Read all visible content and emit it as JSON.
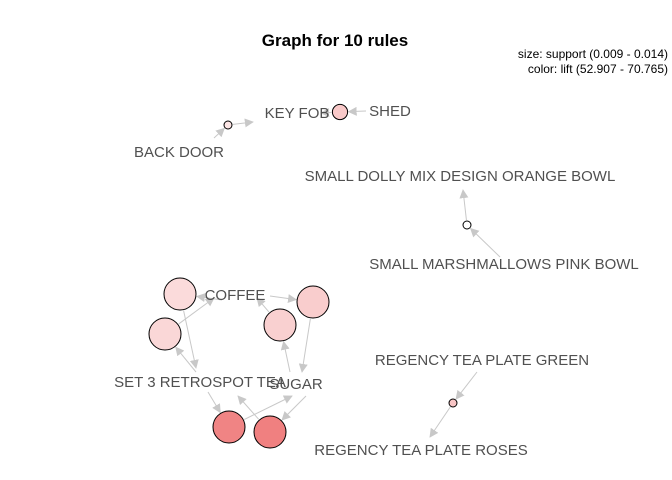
{
  "title": "Graph for 10 rules",
  "legend": {
    "size_text": "size: support (0.009 - 0.014)",
    "color_text": "color: lift (52.907 - 70.765)"
  },
  "chart_data": {
    "type": "network",
    "title": "Graph for 10 rules",
    "size_measure": "support",
    "size_range": [
      0.009,
      0.014
    ],
    "color_measure": "lift",
    "color_range": [
      52.907,
      70.765
    ],
    "color_low": "#ffffff",
    "color_high": "#f08080",
    "edge_color": "#c8c8c8",
    "items": [
      "KEY FOB",
      "SHED",
      "BACK DOOR",
      "SMALL DOLLY MIX DESIGN ORANGE BOWL",
      "SMALL MARSHMALLOWS PINK BOWL",
      "COFFEE",
      "SET 3 RETROSPOT TEA",
      "SUGAR",
      "REGENCY TEA PLATE GREEN",
      "REGENCY TEA PLATE ROSES"
    ],
    "rules": [
      {
        "lhs": [
          "SHED"
        ],
        "rhs": "KEY FOB",
        "support": 0.0105,
        "lift": 60.5
      },
      {
        "lhs": [
          "BACK DOOR"
        ],
        "rhs": "KEY FOB",
        "support": 0.009,
        "lift": 56.5
      },
      {
        "lhs": [
          "SMALL MARSHMALLOWS PINK BOWL"
        ],
        "rhs": "SMALL DOLLY MIX DESIGN ORANGE BOWL",
        "support": 0.009,
        "lift": 52.907
      },
      {
        "lhs": [
          "SET 3 RETROSPOT TEA"
        ],
        "rhs": "COFFEE",
        "support": 0.014,
        "lift": 58.5
      },
      {
        "lhs": [
          "SUGAR"
        ],
        "rhs": "COFFEE",
        "support": 0.014,
        "lift": 59.5
      },
      {
        "lhs": [
          "COFFEE"
        ],
        "rhs": "SET 3 RETROSPOT TEA",
        "support": 0.014,
        "lift": 58.0
      },
      {
        "lhs": [
          "COFFEE"
        ],
        "rhs": "SUGAR",
        "support": 0.014,
        "lift": 60.0
      },
      {
        "lhs": [
          "SUGAR"
        ],
        "rhs": "SET 3 RETROSPOT TEA",
        "support": 0.014,
        "lift": 70.765
      },
      {
        "lhs": [
          "SET 3 RETROSPOT TEA"
        ],
        "rhs": "SUGAR",
        "support": 0.014,
        "lift": 70.2
      },
      {
        "lhs": [
          "REGENCY TEA PLATE GREEN"
        ],
        "rhs": "REGENCY TEA PLATE ROSES",
        "support": 0.009,
        "lift": 61.0
      }
    ]
  }
}
